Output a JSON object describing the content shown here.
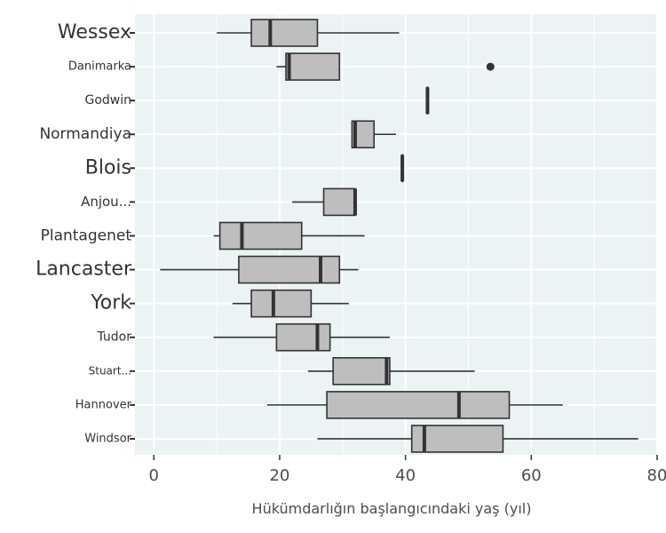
{
  "chart_data": {
    "type": "boxplot",
    "orientation": "horizontal",
    "xlabel": "Hükümdarlığın başlangıcındaki yaş (yıl)",
    "ylabel": "",
    "title": "",
    "xlim": [
      -3,
      80
    ],
    "xticks": [
      0,
      20,
      40,
      60,
      80
    ],
    "grid": true,
    "colors": {
      "panel": "#ebf3f5",
      "box_fill": "#bebebe",
      "box_stroke": "#333333",
      "grid": "#ffffff"
    },
    "categories": [
      "Wessex",
      "Danimarka",
      "Godwin",
      "Normandiya",
      "Blois",
      "Anjou...",
      "Plantagenet",
      "Lancaster",
      "York",
      "Tudor",
      "Stuart...",
      "Hannover",
      "Windsor"
    ],
    "label_sizes": [
      22,
      13,
      14,
      17,
      22,
      15,
      17,
      22,
      22,
      14,
      12,
      13,
      13
    ],
    "boxes": [
      {
        "min": 10,
        "q1": 15.5,
        "median": 18.5,
        "q3": 26,
        "max": 39,
        "outliers": []
      },
      {
        "min": 19.5,
        "q1": 21,
        "median": 21.5,
        "q3": 29.5,
        "max": 29.5,
        "outliers": [
          53.5
        ]
      },
      {
        "min": 43.5,
        "q1": 43.5,
        "median": 43.5,
        "q3": 43.5,
        "max": 43.5,
        "outliers": []
      },
      {
        "min": 31.5,
        "q1": 31.5,
        "median": 32,
        "q3": 35,
        "max": 38.5,
        "outliers": []
      },
      {
        "min": 39.5,
        "q1": 39.5,
        "median": 39.5,
        "q3": 39.5,
        "max": 39.5,
        "outliers": []
      },
      {
        "min": 22,
        "q1": 27,
        "median": 32,
        "q3": 32,
        "max": 32,
        "outliers": []
      },
      {
        "min": 9.5,
        "q1": 10.5,
        "median": 14,
        "q3": 23.5,
        "max": 33.5,
        "outliers": []
      },
      {
        "min": 1,
        "q1": 13.5,
        "median": 26.5,
        "q3": 29.5,
        "max": 32.5,
        "outliers": []
      },
      {
        "min": 12.5,
        "q1": 15.5,
        "median": 19,
        "q3": 25,
        "max": 31,
        "outliers": []
      },
      {
        "min": 9.5,
        "q1": 19.5,
        "median": 26,
        "q3": 28,
        "max": 37.5,
        "outliers": []
      },
      {
        "min": 24.5,
        "q1": 28.5,
        "median": 37,
        "q3": 37.5,
        "max": 51,
        "outliers": []
      },
      {
        "min": 18,
        "q1": 27.5,
        "median": 48.5,
        "q3": 56.5,
        "max": 65,
        "outliers": []
      },
      {
        "min": 26,
        "q1": 41,
        "median": 43,
        "q3": 55.5,
        "max": 77,
        "outliers": []
      }
    ]
  }
}
